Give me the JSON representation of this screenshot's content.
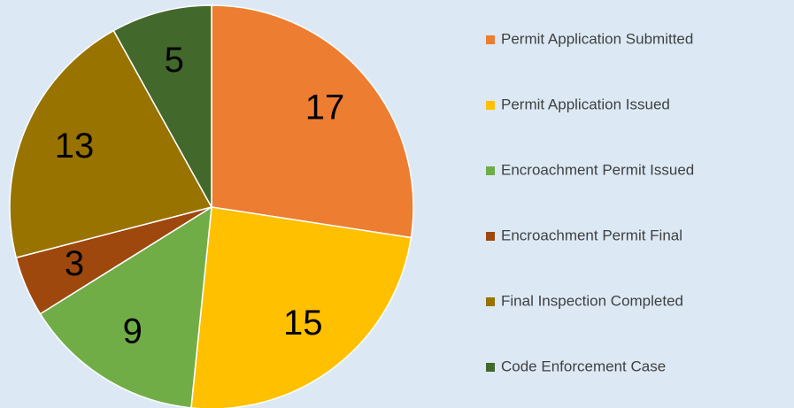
{
  "chart_data": {
    "type": "pie",
    "categories": [
      "Permit Application Submitted",
      "Permit Application Issued",
      "Encroachment Permit Issued",
      "Encroachment Permit Final",
      "Final Inspection Completed",
      "Code Enforcement Case"
    ],
    "values": [
      17,
      15,
      9,
      3,
      13,
      5
    ],
    "colors": [
      "#ed7d31",
      "#ffc000",
      "#70ad47",
      "#9e480e",
      "#997300",
      "#43682b"
    ],
    "legend": "right"
  }
}
